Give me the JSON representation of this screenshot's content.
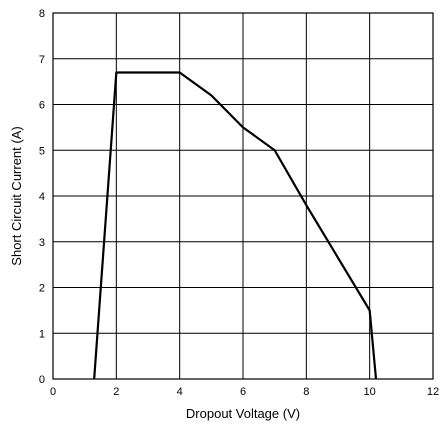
{
  "chart_data": {
    "type": "line",
    "title": "",
    "xlabel": "Dropout Voltage (V)",
    "ylabel": "Short Circuit Current (A)",
    "xlim": [
      0,
      12
    ],
    "ylim": [
      0,
      8
    ],
    "xticks": [
      0,
      2,
      4,
      6,
      8,
      10,
      12
    ],
    "yticks": [
      0,
      1,
      2,
      3,
      4,
      5,
      6,
      7,
      8
    ],
    "grid": true,
    "legend": "none",
    "series": [
      {
        "x": [
          1.3,
          2.0,
          4.0,
          5.0,
          6.0,
          7.0,
          8.0,
          9.0,
          10.0,
          10.2
        ],
        "y": [
          0,
          6.7,
          6.7,
          6.2,
          5.5,
          5.0,
          3.8,
          2.65,
          1.5,
          0
        ],
        "color": "#000000"
      }
    ]
  }
}
